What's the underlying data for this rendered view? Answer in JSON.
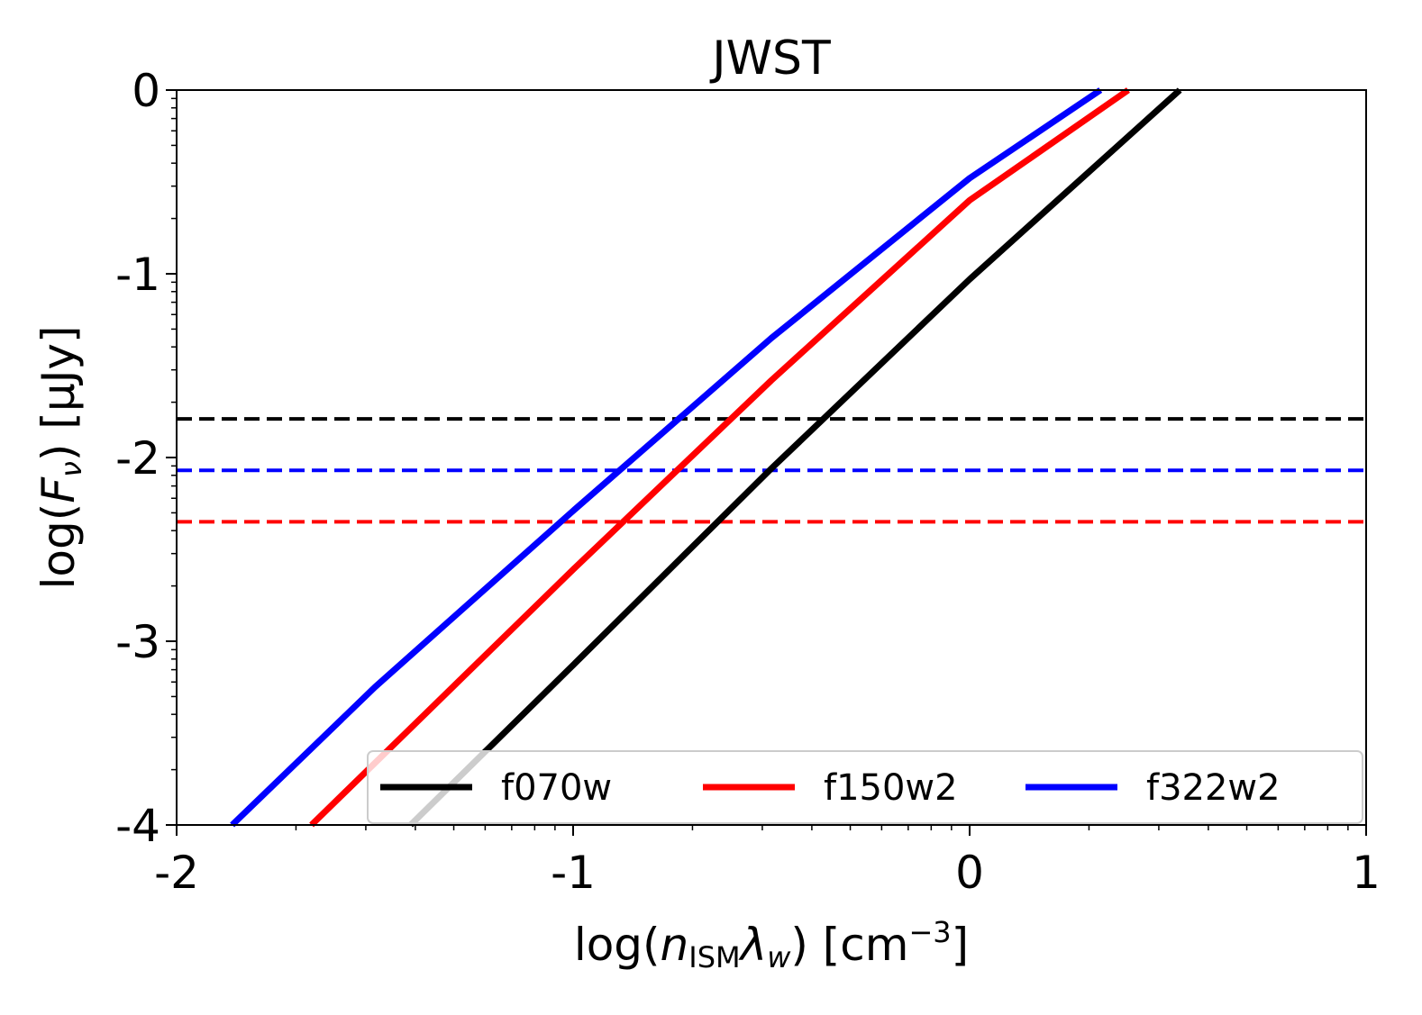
{
  "chart_data": {
    "type": "line",
    "title": "JWST",
    "xlabel": {
      "prefix": "log(",
      "var": "n",
      "sub": "ISM",
      "var2": "λ",
      "sub2": "w",
      "suffix": ") [cm",
      "sup": "−3",
      "end": "]"
    },
    "ylabel": {
      "prefix": "log(",
      "var": "F",
      "sub": "ν",
      "suffix": ") [μJy]"
    },
    "xlim": [
      -2,
      1
    ],
    "ylim": [
      -4,
      0
    ],
    "x_ticks": [
      -2,
      -1,
      0,
      1
    ],
    "x_tick_labels": [
      "-2",
      "-1",
      "0",
      "1"
    ],
    "y_ticks": [
      0,
      -1,
      -2,
      -3,
      -4
    ],
    "y_tick_labels": [
      "0",
      "-1",
      "-2",
      "-3",
      "-4"
    ],
    "grid": false,
    "legend_placement": "lower-right",
    "series": [
      {
        "name": "f070w",
        "color": "#000000",
        "x": [
          -1.41,
          -1.0,
          -0.5,
          0.0,
          0.53
        ],
        "y": [
          -4.0,
          -3.13,
          -2.06,
          -1.03,
          0.0
        ]
      },
      {
        "name": "f150w2",
        "color": "#ff0000",
        "x": [
          -1.66,
          -1.0,
          -0.5,
          0.0,
          0.4
        ],
        "y": [
          -4.0,
          -2.61,
          -1.58,
          -0.6,
          0.0
        ]
      },
      {
        "name": "f322w2",
        "color": "#0000ff",
        "x": [
          -1.86,
          -1.5,
          -1.0,
          -0.5,
          0.0,
          0.33
        ],
        "y": [
          -4.0,
          -3.25,
          -2.29,
          -1.35,
          -0.48,
          0.0
        ]
      }
    ],
    "thresholds": [
      {
        "name": "f070w",
        "color": "#000000",
        "y": -1.79
      },
      {
        "name": "f322w2",
        "color": "#0000ff",
        "y": -2.07
      },
      {
        "name": "f150w2",
        "color": "#ff0000",
        "y": -2.35
      }
    ]
  }
}
